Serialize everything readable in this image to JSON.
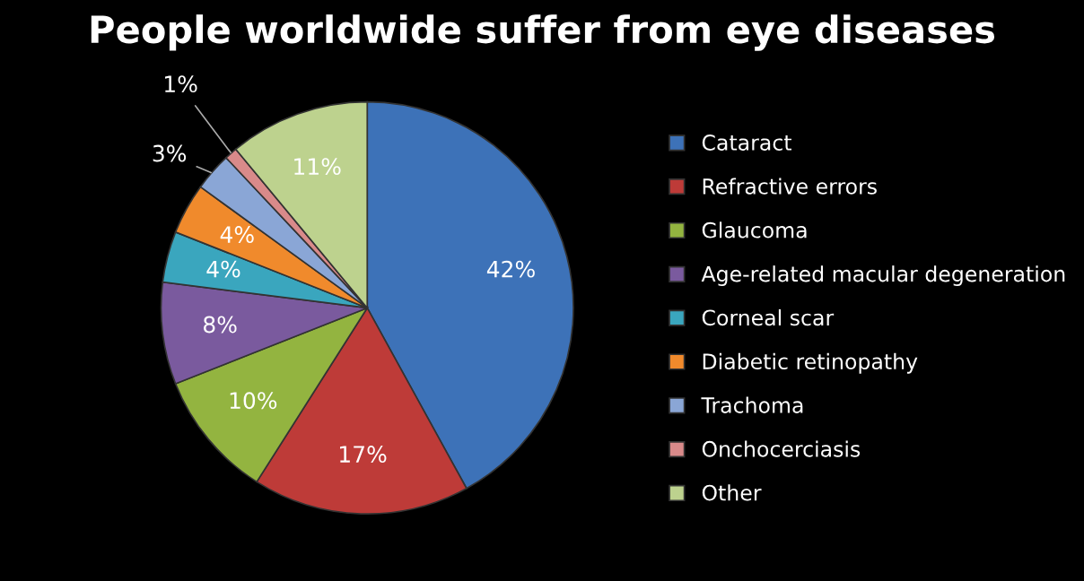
{
  "chart_data": {
    "type": "pie",
    "title": "People worldwide suffer from eye diseases",
    "categories": [
      "Cataract",
      "Refractive errors",
      "Glaucoma",
      "Age-related macular degeneration",
      "Corneal scar",
      "Diabetic retinopathy",
      "Trachoma",
      "Onchocerciasis",
      "Other"
    ],
    "values": [
      42,
      17,
      10,
      8,
      4,
      4,
      3,
      1,
      11
    ],
    "colors": [
      "#3d72b8",
      "#be3b38",
      "#93b440",
      "#7a5a9e",
      "#3aa6be",
      "#f08a2c",
      "#8aa6d6",
      "#d98a8a",
      "#bdd28e"
    ],
    "value_labels": [
      "42%",
      "17%",
      "10%",
      "8%",
      "4%",
      "4%",
      "3%",
      "1%",
      "11%"
    ],
    "legend": "right"
  }
}
